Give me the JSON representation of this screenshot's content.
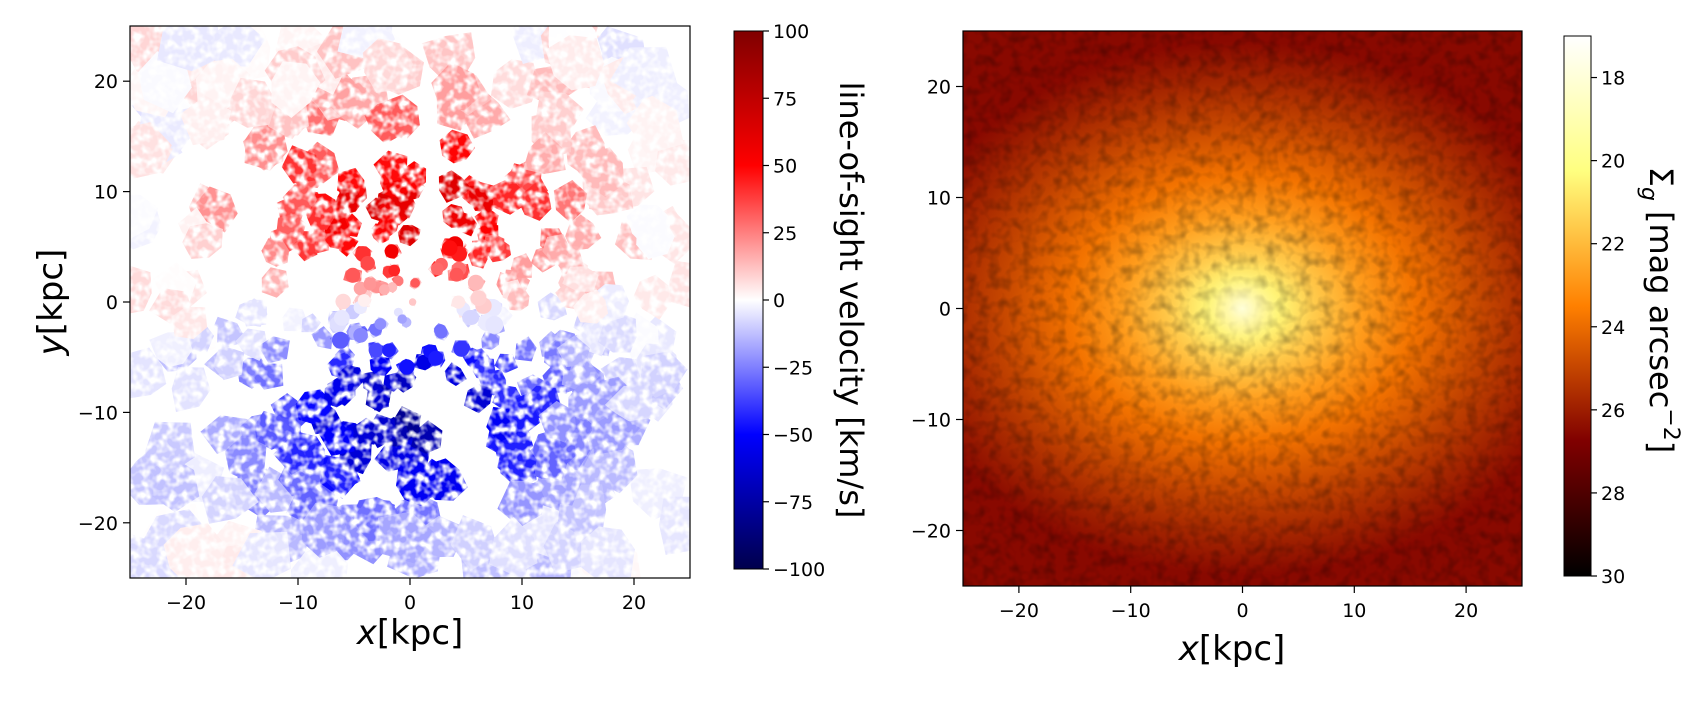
{
  "chart_data": [
    {
      "type": "heatmap",
      "subtype": "voronoi-binned velocity map",
      "xlabel_italic": "x",
      "xlabel_unit": "[kpc]",
      "ylabel_italic": "y",
      "ylabel_unit": "[kpc]",
      "xlim": [
        -25,
        25
      ],
      "ylim": [
        -25,
        25
      ],
      "xticks": [
        -20,
        -10,
        0,
        10,
        20
      ],
      "yticks": [
        -20,
        -10,
        0,
        10,
        20
      ],
      "xtick_labels": [
        "−20",
        "−10",
        "0",
        "10",
        "20"
      ],
      "ytick_labels": [
        "−20",
        "−10",
        "0",
        "10",
        "20"
      ],
      "colormap": "seismic",
      "colorbar": {
        "label": "line-of-sight velocity [km/s]",
        "range": [
          -100,
          100
        ],
        "ticks": [
          100,
          75,
          50,
          25,
          0,
          -25,
          -50,
          -75,
          -100
        ],
        "tick_labels": [
          "100",
          "75",
          "50",
          "25",
          "0",
          "−25",
          "−50",
          "−75",
          "−100"
        ]
      },
      "features": {
        "receding_peak": {
          "x": 0,
          "y": 8,
          "velocity": 65
        },
        "approaching_peak": {
          "x": 0,
          "y": -10,
          "velocity": -75
        },
        "sign": "positive velocity above y=0, negative below"
      }
    },
    {
      "type": "heatmap",
      "subtype": "surface brightness map",
      "xlabel_italic": "x",
      "xlabel_unit": "[kpc]",
      "xlim": [
        -25,
        25
      ],
      "ylim": [
        -25,
        25
      ],
      "xticks": [
        -20,
        -10,
        0,
        10,
        20
      ],
      "yticks": [
        -20,
        -10,
        0,
        10,
        20
      ],
      "xtick_labels": [
        "−20",
        "−10",
        "0",
        "10",
        "20"
      ],
      "ytick_labels": [
        "−20",
        "−10",
        "0",
        "10",
        "20"
      ],
      "colormap": "afmhot",
      "colorbar": {
        "label_symbol": "Σ",
        "label_subscript": "g",
        "label_unit": "[mag arcsec",
        "label_power": "−2",
        "label_close": "]",
        "range": [
          17,
          30
        ],
        "reversed": true,
        "ticks": [
          18,
          20,
          22,
          24,
          26,
          28,
          30
        ],
        "tick_labels": [
          "18",
          "20",
          "22",
          "24",
          "26",
          "28",
          "30"
        ]
      },
      "features": {
        "center": {
          "x": 0,
          "y": 0,
          "mag": 18
        },
        "axis_ratio": 0.65,
        "edge_mag": 26.5
      }
    }
  ]
}
